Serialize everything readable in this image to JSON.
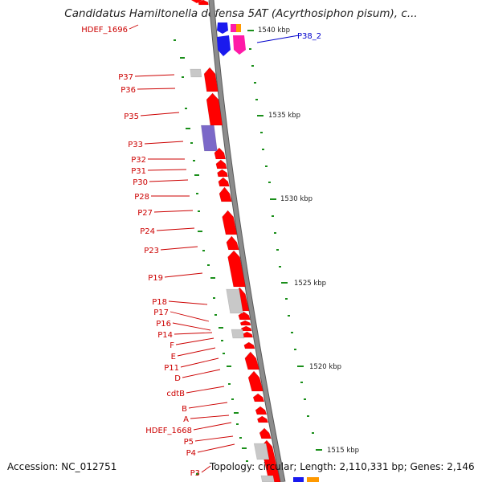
{
  "title": "Candidatus Hamiltonella defensa 5AT (Acyrthosiphon pisum), c...",
  "footer": {
    "accession": "Accession: NC_012751",
    "summary": "Topology: circular; Length: 2,110,331 bp; Genes: 2,146"
  },
  "colors": {
    "backbone": "#8c8c8c",
    "label_red": "#cc0000",
    "label_blue": "#0000cc",
    "tick_green": "#1a8f1a",
    "gene_red": "#ff0000",
    "gene_gray": "#c8c8c8",
    "gene_purple": "#7b68c8",
    "gene_blue": "#1a1aee",
    "gene_magenta": "#ff1aa8",
    "gene_orange": "#ff9900"
  },
  "scale_labels": [
    "1540 kbp",
    "1535 kbp",
    "1530 kbp",
    "1525 kbp",
    "1520 kbp",
    "1515 kbp"
  ],
  "gene_labels": [
    {
      "text": "HDEF_1696",
      "color": "red"
    },
    {
      "text": "P38_2",
      "color": "blue"
    },
    {
      "text": "P37",
      "color": "red"
    },
    {
      "text": "P36",
      "color": "red"
    },
    {
      "text": "P35",
      "color": "red"
    },
    {
      "text": "P33",
      "color": "red"
    },
    {
      "text": "P32",
      "color": "red"
    },
    {
      "text": "P31",
      "color": "red"
    },
    {
      "text": "P30",
      "color": "red"
    },
    {
      "text": "P28",
      "color": "red"
    },
    {
      "text": "P27",
      "color": "red"
    },
    {
      "text": "P24",
      "color": "red"
    },
    {
      "text": "P23",
      "color": "red"
    },
    {
      "text": "P19",
      "color": "red"
    },
    {
      "text": "P18",
      "color": "red"
    },
    {
      "text": "P17",
      "color": "red"
    },
    {
      "text": "P16",
      "color": "red"
    },
    {
      "text": "P14",
      "color": "red"
    },
    {
      "text": "F",
      "color": "red"
    },
    {
      "text": "E",
      "color": "red"
    },
    {
      "text": "P11",
      "color": "red"
    },
    {
      "text": "D",
      "color": "red"
    },
    {
      "text": "cdtB",
      "color": "red"
    },
    {
      "text": "B",
      "color": "red"
    },
    {
      "text": "A",
      "color": "red"
    },
    {
      "text": "HDEF_1668",
      "color": "red"
    },
    {
      "text": "P5",
      "color": "red"
    },
    {
      "text": "P4",
      "color": "red"
    },
    {
      "text": "P3",
      "color": "red"
    }
  ]
}
